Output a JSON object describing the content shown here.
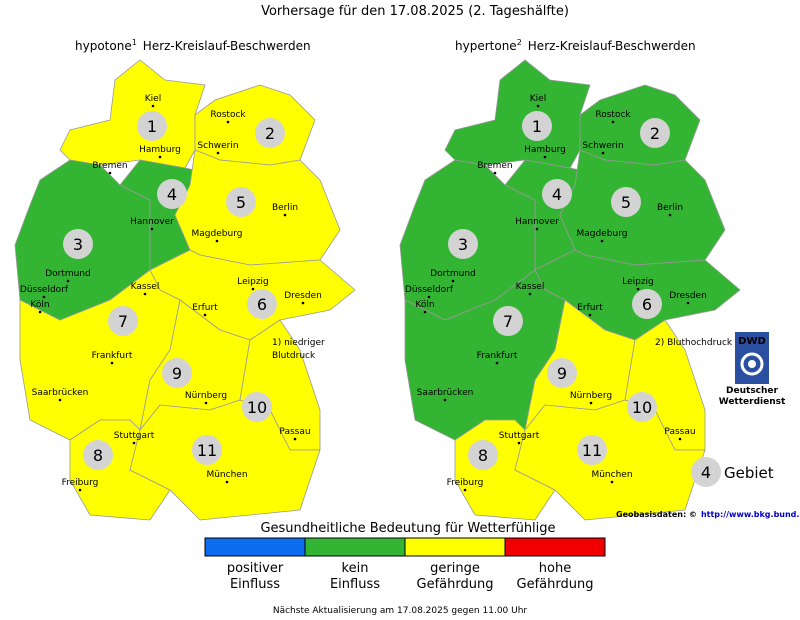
{
  "title": "Vorhersage für den 17.08.2025 (2. Tageshälfte)",
  "maps": [
    {
      "name": "hypotone",
      "mark": "1",
      "subtitle": "Herz-Kreislauf-Beschwerden",
      "note": [
        "1) niedriger",
        "Blutdruck"
      ],
      "regions": [
        {
          "label": "1",
          "level": 2
        },
        {
          "label": "2",
          "level": 2
        },
        {
          "label": "3",
          "level": 1
        },
        {
          "label": "4",
          "level": 1
        },
        {
          "label": "5",
          "level": 2
        },
        {
          "label": "6",
          "level": 2
        },
        {
          "label": "7",
          "level": 2
        },
        {
          "label": "8",
          "level": 2
        },
        {
          "label": "9",
          "level": 2
        },
        {
          "label": "10",
          "level": 2
        },
        {
          "label": "11",
          "level": 2
        }
      ]
    },
    {
      "name": "hypertone",
      "mark": "2",
      "subtitle": "Herz-Kreislauf-Beschwerden",
      "note": [
        "2) Bluthochdruck"
      ],
      "regions": [
        {
          "label": "1",
          "level": 1
        },
        {
          "label": "2",
          "level": 1
        },
        {
          "label": "3",
          "level": 1
        },
        {
          "label": "4",
          "level": 1
        },
        {
          "label": "5",
          "level": 1
        },
        {
          "label": "6",
          "level": 1
        },
        {
          "label": "7",
          "level": 1
        },
        {
          "label": "8",
          "level": 2
        },
        {
          "label": "9",
          "level": 2
        },
        {
          "label": "10",
          "level": 2
        },
        {
          "label": "11",
          "level": 2
        }
      ]
    }
  ],
  "cities": [
    "Kiel",
    "Rostock",
    "Hamburg",
    "Schwerin",
    "Bremen",
    "Hannover",
    "Berlin",
    "Magdeburg",
    "Dortmund",
    "Düsseldorf",
    "Köln",
    "Kassel",
    "Leipzig",
    "Dresden",
    "Erfurt",
    "Frankfurt",
    "Saarbrücken",
    "Nürnberg",
    "Passau",
    "Stuttgart",
    "München",
    "Freiburg"
  ],
  "logo": {
    "short": "DWD",
    "lines": [
      "Deutscher",
      "Wetterdienst"
    ]
  },
  "key": {
    "number": "4",
    "label": "Gebiet"
  },
  "source": {
    "text": "Geobasisdaten: ©",
    "link": "http://www.bkg.bund.de"
  },
  "legend": {
    "title": "Gesundheitliche Bedeutung für Wetterfühlige",
    "items": [
      {
        "lines": [
          "positiver",
          "Einfluss"
        ],
        "color": "#0b6cf0"
      },
      {
        "lines": [
          "kein",
          "Einfluss"
        ],
        "color": "#33b533"
      },
      {
        "lines": [
          "geringe",
          "Gefährdung"
        ],
        "color": "#ffff00"
      },
      {
        "lines": [
          "hohe",
          "Gefährdung"
        ],
        "color": "#f00000"
      }
    ]
  },
  "footer": "Nächste Aktualisierung am 17.08.2025 gegen 11.00 Uhr"
}
